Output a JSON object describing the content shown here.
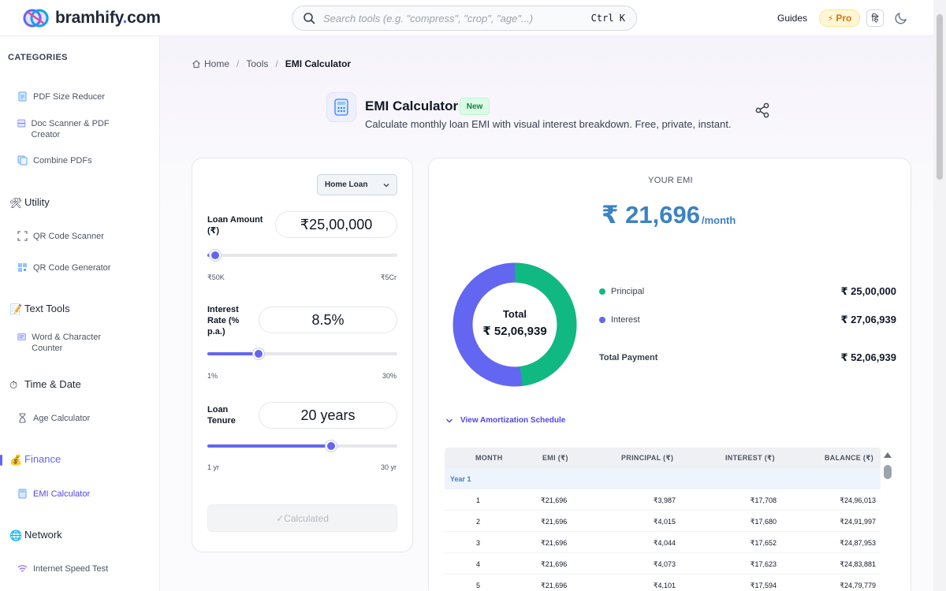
{
  "header": {
    "logo_name": "bramhify",
    "logo_dot": ".",
    "logo_tld": "com",
    "search_placeholder": "Search tools (e.g. \"compress\", \"crop\", \"age\"...)",
    "search_shortcut": "Ctrl K",
    "guides_label": "Guides",
    "pro_label": "Pro",
    "lang_label": "हि"
  },
  "sidebar": {
    "categories_title": "CATEGORIES",
    "pdf_items": [
      {
        "label": "PDF Size Reducer"
      },
      {
        "label": "Doc Scanner & PDF Creator"
      },
      {
        "label": "Combine PDFs"
      }
    ],
    "groups": {
      "utility": "Utility",
      "text_tools": "Text Tools",
      "time_date": "Time & Date",
      "finance": "Finance",
      "network": "Network"
    },
    "utility_items": [
      {
        "label": "QR Code Scanner"
      },
      {
        "label": "QR Code Generator"
      }
    ],
    "text_items": [
      {
        "label": "Word & Character Counter"
      }
    ],
    "time_items": [
      {
        "label": "Age Calculator"
      }
    ],
    "finance_items": [
      {
        "label": "EMI Calculator"
      }
    ],
    "network_items": [
      {
        "label": "Internet Speed Test"
      }
    ]
  },
  "breadcrumb": {
    "home": "Home",
    "tools": "Tools",
    "current": "EMI Calculator"
  },
  "tool": {
    "title": "EMI Calculator",
    "badge": "New",
    "subtitle": "Calculate monthly loan EMI with visual interest breakdown. Free, private, instant."
  },
  "form": {
    "loan_type": "Home Loan",
    "loan_amount_label": "Loan Amount (₹)",
    "loan_amount_value": "₹25,00,000",
    "loan_amount_min": "₹50K",
    "loan_amount_max": "₹5Cr",
    "loan_amount_fraction": 0.04,
    "interest_label": "Interest Rate (% p.a.)",
    "interest_value": "8.5%",
    "interest_min": "1%",
    "interest_max": "30%",
    "interest_fraction": 0.27,
    "tenure_label": "Loan Tenure",
    "tenure_value": "20 years",
    "tenure_min": "1 yr",
    "tenure_max": "30 yr",
    "tenure_fraction": 0.65,
    "calc_button": "✓Calculated"
  },
  "result": {
    "emi_label": "YOUR EMI",
    "emi_value": "₹ 21,696",
    "emi_unit": "/month",
    "donut_total_label": "Total",
    "donut_total_value": "₹ 52,06,939",
    "principal_label": "Principal",
    "principal_value": "₹ 25,00,000",
    "interest_label": "Interest",
    "interest_value": "₹ 27,06,939",
    "total_label": "Total Payment",
    "total_value": "₹ 52,06,939",
    "principal_share": 0.48,
    "colors": {
      "principal": "#10b981",
      "interest": "#6366f1"
    },
    "amortization_toggle": "View Amortization Schedule"
  },
  "table": {
    "headers": [
      "MONTH",
      "EMI (₹)",
      "PRINCIPAL (₹)",
      "INTEREST (₹)",
      "BALANCE (₹)"
    ],
    "year_label": "Year 1",
    "rows": [
      [
        "1",
        "₹21,696",
        "₹3,987",
        "₹17,708",
        "₹24,96,013"
      ],
      [
        "2",
        "₹21,696",
        "₹4,015",
        "₹17,680",
        "₹24,91,997"
      ],
      [
        "3",
        "₹21,696",
        "₹4,044",
        "₹17,652",
        "₹24,87,953"
      ],
      [
        "4",
        "₹21,696",
        "₹4,073",
        "₹17,623",
        "₹24,83,881"
      ],
      [
        "5",
        "₹21,696",
        "₹4,101",
        "₹17,594",
        "₹24,79,779"
      ]
    ]
  }
}
